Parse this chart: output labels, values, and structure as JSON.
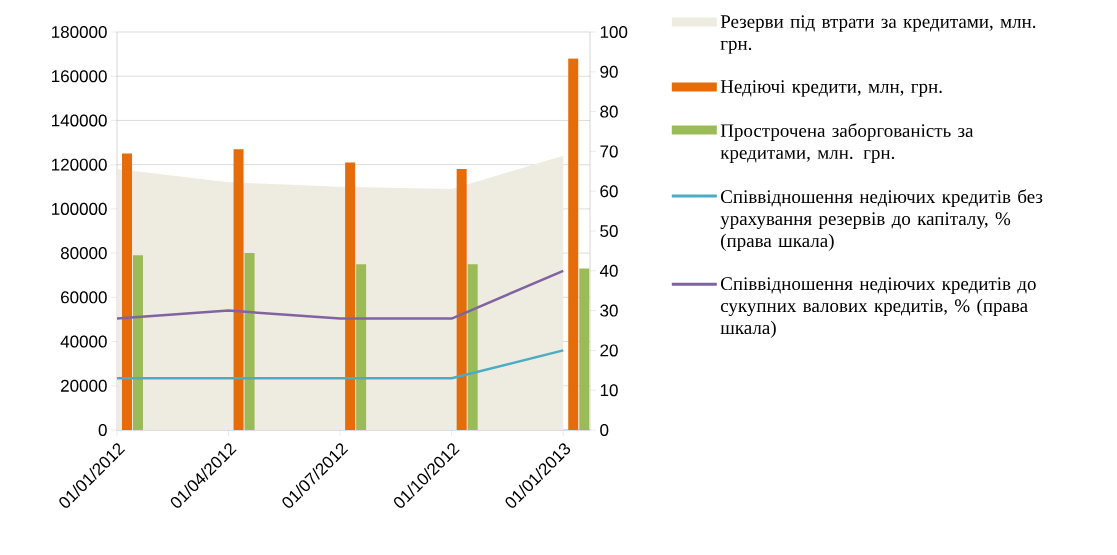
{
  "chart_data": {
    "type": "bar",
    "categories": [
      "01/01/2012",
      "01/04/2012",
      "01/07/2012",
      "01/10/2012",
      "01/01/2013"
    ],
    "series": [
      {
        "name": "Резерви під втрати за кредитами, млн. грн.",
        "type": "area",
        "color": "#eeebe0",
        "values": [
          118000,
          112000,
          110000,
          109000,
          124000
        ]
      },
      {
        "name": "Недіючі кредити, млн, грн.",
        "color": "#e46c0a",
        "values": [
          125000,
          127000,
          121000,
          118000,
          168000
        ]
      },
      {
        "name": "Прострочена заборгованість за кредитами, млн. грн.",
        "color": "#9bbb59",
        "values": [
          79000,
          80000,
          75000,
          75000,
          73000
        ]
      },
      {
        "name": "Співвідношення недіючих кредитів без урахування резервів до капіталу, % (права шкала)",
        "type": "line",
        "axis": "y2",
        "color": "#4bacc6",
        "values": [
          13,
          13,
          13,
          13,
          20
        ]
      },
      {
        "name": "Співвідношення недіючих кредитів до сукупних валових кредитів, % (права шкала)",
        "type": "line",
        "axis": "y2",
        "color": "#8064a2",
        "values": [
          28,
          30,
          28,
          28,
          40
        ]
      }
    ],
    "ylim": [
      0,
      180000
    ],
    "yticks": [
      0,
      20000,
      40000,
      60000,
      80000,
      100000,
      120000,
      140000,
      160000,
      180000
    ],
    "y2lim": [
      0,
      100
    ],
    "y2ticks": [
      0,
      10,
      20,
      30,
      40,
      50,
      60,
      70,
      80,
      90,
      100
    ],
    "grid": "y",
    "legend": "right",
    "marker": "none",
    "line_style": "solid"
  }
}
